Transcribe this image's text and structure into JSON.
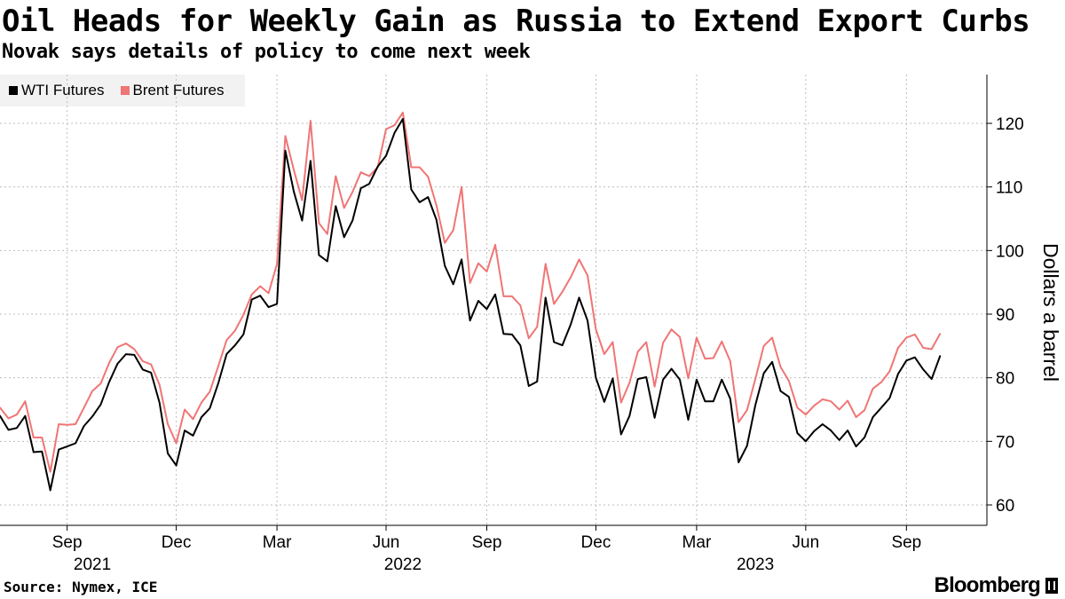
{
  "header": {
    "title": "Oil Heads for Weekly Gain as Russia to Extend Export Curbs",
    "subtitle": "Novak says details of policy to come next week"
  },
  "footer": {
    "source": "Source: Nymex, ICE",
    "brand": "Bloomberg"
  },
  "chart_data": {
    "type": "line",
    "title": "Oil Heads for Weekly Gain as Russia to Extend Export Curbs",
    "subtitle": "Novak says details of policy to come next week",
    "ylabel": "Dollars a barrel",
    "xlabel": "",
    "ylim": [
      57,
      128
    ],
    "yticks": [
      60,
      70,
      80,
      90,
      100,
      110,
      120
    ],
    "x_range_index": [
      0,
      116
    ],
    "x_ticks": [
      {
        "label": "Sep",
        "x": 8
      },
      {
        "label": "Dec",
        "x": 21
      },
      {
        "label": "Mar",
        "x": 33
      },
      {
        "label": "Jun",
        "x": 46
      },
      {
        "label": "Sep",
        "x": 58
      },
      {
        "label": "Dec",
        "x": 71
      },
      {
        "label": "Mar",
        "x": 83
      },
      {
        "label": "Jun",
        "x": 96
      },
      {
        "label": "Sep",
        "x": 108
      }
    ],
    "years": [
      {
        "label": "2021",
        "x": 11
      },
      {
        "label": "2022",
        "x": 48
      },
      {
        "label": "2023",
        "x": 90
      }
    ],
    "legend": [
      {
        "name": "WTI Futures",
        "color": "#000000"
      },
      {
        "name": "Brent Futures",
        "color": "#f07575"
      }
    ],
    "grid": true,
    "legend_position": "top-left",
    "series": [
      {
        "name": "WTI Futures",
        "color": "#000000",
        "values": [
          74,
          71.8,
          72.1,
          74,
          68.3,
          68.4,
          62.3,
          68.7,
          69.2,
          69.7,
          72.4,
          73.9,
          75.8,
          79.3,
          82.2,
          83.7,
          83.6,
          81.3,
          80.8,
          76.1,
          68.1,
          66.2,
          71.7,
          70.9,
          73.8,
          75.2,
          79.1,
          83.7,
          85.1,
          86.8,
          92.3,
          92.9,
          91.1,
          91.6,
          115.7,
          109.3,
          104.7,
          114.1,
          99.3,
          98.3,
          107,
          102.1,
          104.7,
          109.8,
          110.5,
          113.2,
          114.9,
          118.5,
          120.7,
          109.6,
          107.6,
          108.4,
          104.8,
          97.6,
          94.7,
          98.6,
          89,
          92.1,
          90.8,
          93.1,
          86.9,
          86.8,
          85.1,
          78.7,
          79.4,
          92.6,
          85.6,
          85.1,
          88.4,
          92.6,
          89,
          80,
          76.2,
          79.9,
          71.1,
          74,
          79.8,
          80.1,
          73.7,
          79.7,
          81.4,
          79.7,
          73.4,
          79.7,
          76.3,
          76.3,
          79.7,
          76.7,
          66.7,
          69.3,
          75.7,
          80.7,
          82.5,
          77.9,
          77,
          71.3,
          70,
          71.6,
          72.7,
          71.7,
          70.2,
          71.7,
          69.2,
          70.6,
          73.8,
          75.3,
          76.8,
          80.6,
          82.7,
          83.2,
          81.3,
          79.8,
          83.4
        ]
      },
      {
        "name": "Brent Futures",
        "color": "#f07575",
        "values": [
          75.3,
          73.6,
          74.2,
          76.3,
          70.6,
          70.6,
          65.2,
          72.7,
          72.6,
          72.7,
          75.3,
          77.9,
          79.1,
          82.3,
          84.8,
          85.4,
          84.5,
          82.6,
          82.1,
          78.9,
          72.7,
          69.7,
          75,
          73.5,
          76.1,
          77.8,
          81.8,
          85.9,
          87.4,
          89.9,
          93.1,
          94.4,
          93.3,
          97.9,
          118,
          112.7,
          107.9,
          120.4,
          104.3,
          102.6,
          111.7,
          106.7,
          109.2,
          112.3,
          111.7,
          113.1,
          119.1,
          119.7,
          121.7,
          113.1,
          113.1,
          111.6,
          107.1,
          101.2,
          103.2,
          110,
          94.9,
          98,
          96.7,
          100.9,
          92.8,
          92.8,
          91.4,
          86.2,
          88,
          97.9,
          91.6,
          93.5,
          95.8,
          98.6,
          96.1,
          87.6,
          83.7,
          85.6,
          76.1,
          79.2,
          84.1,
          85.6,
          78.6,
          85.5,
          87.6,
          86.4,
          79.9,
          86.3,
          83,
          83.1,
          85.7,
          82.6,
          73,
          74.9,
          79.8,
          85,
          86.3,
          81.7,
          79.5,
          75.3,
          74.2,
          75.6,
          76.6,
          76.3,
          75,
          76.4,
          73.8,
          74.9,
          78.3,
          79.3,
          81,
          84.7,
          86.3,
          86.8,
          84.7,
          84.5,
          86.9
        ]
      }
    ]
  }
}
